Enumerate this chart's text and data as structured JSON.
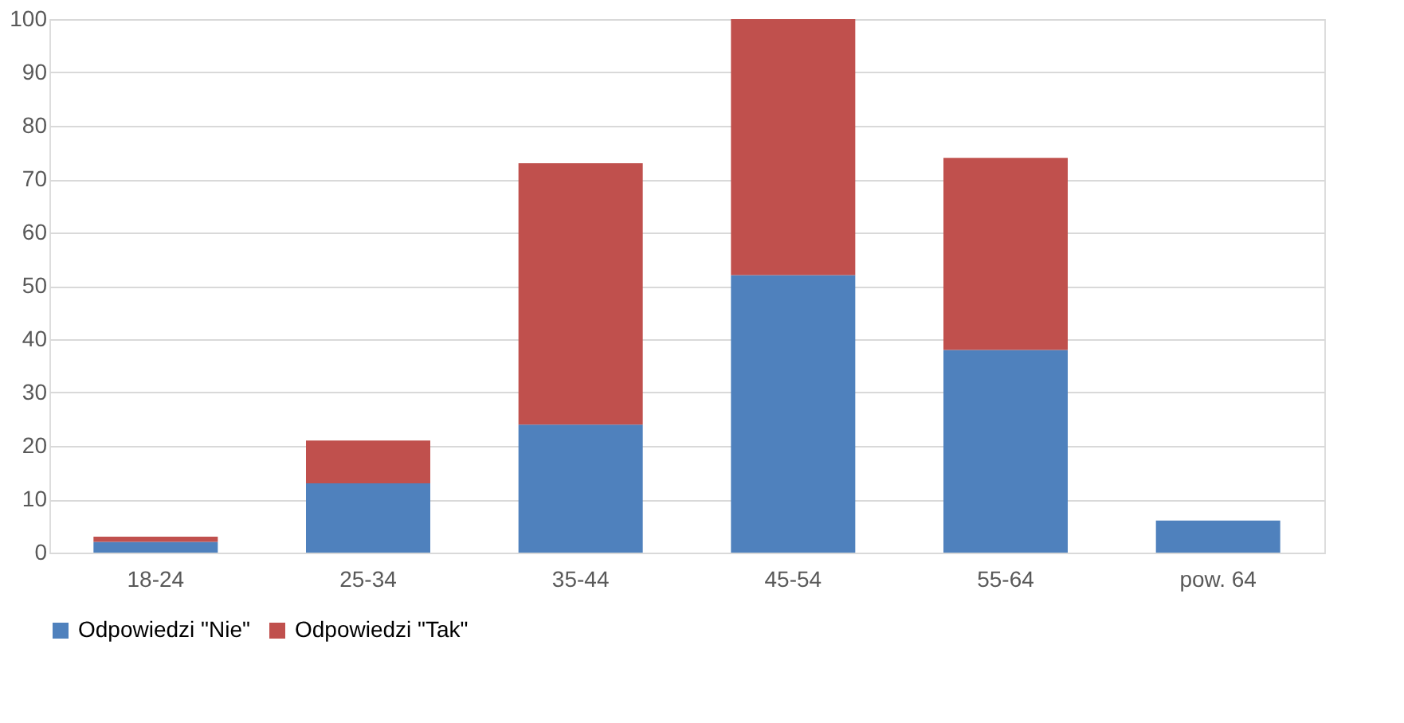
{
  "chart_data": {
    "type": "bar",
    "stacked": true,
    "categories": [
      "18-24",
      "25-34",
      "35-44",
      "45-54",
      "55-64",
      "pow. 64"
    ],
    "series": [
      {
        "name": "Odpowiedzi \"Nie\"",
        "color": "#4f81bd",
        "values": [
          2,
          13,
          24,
          52,
          38,
          6
        ]
      },
      {
        "name": "Odpowiedzi \"Tak\"",
        "color": "#c0504d",
        "values": [
          1,
          8,
          49,
          48,
          36,
          0
        ]
      }
    ],
    "ylim": [
      0,
      100
    ],
    "yticks": [
      0,
      10,
      20,
      30,
      40,
      50,
      60,
      70,
      80,
      90,
      100
    ],
    "grid": "y",
    "legend": "bottom"
  }
}
